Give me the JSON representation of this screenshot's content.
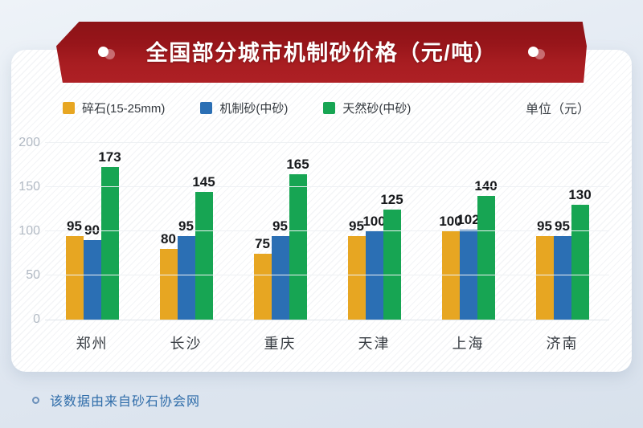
{
  "banner": {
    "title": "全国部分城市机制砂价格（元/吨）"
  },
  "legend": {
    "items": [
      {
        "label": "碎石(15-25mm)",
        "color": "#e7a622"
      },
      {
        "label": "机制砂(中砂)",
        "color": "#2b6fb4"
      },
      {
        "label": "天然砂(中砂)",
        "color": "#17a553"
      }
    ],
    "unit_label": "单位（元）"
  },
  "chart_data": {
    "type": "bar",
    "title": "全国部分城市机制砂价格（元/吨）",
    "categories": [
      "郑州",
      "长沙",
      "重庆",
      "天津",
      "上海",
      "济南"
    ],
    "series": [
      {
        "name": "碎石(15-25mm)",
        "color": "#e7a622",
        "values": [
          95,
          80,
          75,
          95,
          100,
          95
        ]
      },
      {
        "name": "机制砂(中砂)",
        "color": "#2b6fb4",
        "values": [
          90,
          95,
          95,
          100,
          102,
          95
        ]
      },
      {
        "name": "天然砂(中砂)",
        "color": "#17a553",
        "values": [
          173,
          145,
          165,
          125,
          140,
          130
        ]
      }
    ],
    "ylim": [
      0,
      200
    ],
    "yticks": [
      0,
      50,
      100,
      150,
      200
    ],
    "grid": true,
    "value_labels": true,
    "legend_position": "top",
    "unit": "元"
  },
  "footer": {
    "source_note": "该数据由来自砂石协会网"
  },
  "colors": {
    "banner_dark_red": "#8c1316",
    "banner_red": "#ae2025",
    "crushed_stone": "#e7a622",
    "machine_sand": "#2b6fb4",
    "natural_sand": "#17a553",
    "value_label": "#17191c",
    "axis_label": "#b2bac4",
    "footer_text": "#2e6ca9"
  }
}
